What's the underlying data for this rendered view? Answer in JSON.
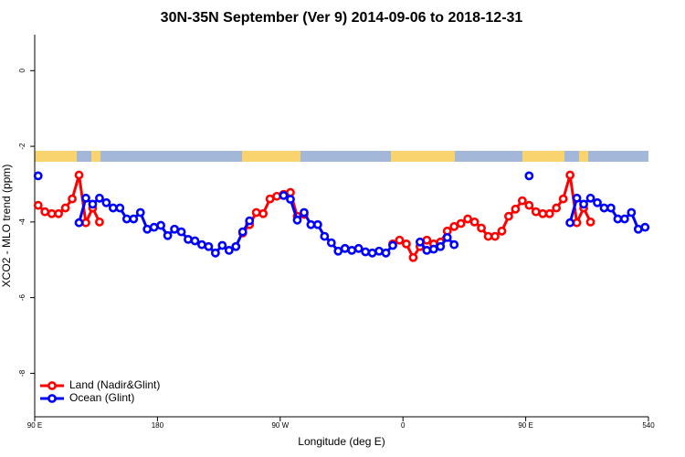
{
  "chart_data": {
    "type": "line",
    "title": "30N-35N September (Ver 9)   2014-09-06 to 2018-12-31",
    "x_label": "Longitude (deg E)",
    "y_label": "XCO2 - MLO trend (ppm)",
    "x": [
      92.5,
      97.5,
      102.5,
      107.5,
      112.5,
      117.5,
      122.5,
      127.5,
      132.5,
      137.5,
      142.5,
      147.5,
      152.5,
      157.5,
      162.5,
      167.5,
      172.5,
      177.5,
      182.5,
      187.5,
      192.5,
      197.5,
      202.5,
      207.5,
      212.5,
      217.5,
      222.5,
      227.5,
      232.5,
      237.5,
      242.5,
      247.5,
      252.5,
      257.5,
      262.5,
      267.5,
      272.5,
      277.5,
      282.5,
      287.5,
      292.5,
      297.5,
      302.5,
      307.5,
      312.5,
      317.5,
      322.5,
      327.5,
      332.5,
      337.5,
      342.5,
      347.5,
      352.5,
      357.5,
      362.5,
      367.5,
      372.5,
      377.5,
      382.5,
      387.5,
      392.5,
      397.5,
      402.5,
      407.5,
      412.5,
      417.5,
      422.5,
      427.5,
      432.5,
      437.5,
      442.5,
      447.5,
      452.5,
      457.5,
      462.5,
      467.5,
      472.5,
      477.5,
      482.5,
      487.5,
      492.5,
      497.5,
      502.5,
      507.5,
      512.5,
      517.5,
      522.5,
      527.5,
      532.5,
      537.5
    ],
    "series": [
      {
        "name": "Land (Nadir&Glint)",
        "color": "#ff0000",
        "values": [
          -3.56,
          -3.73,
          -3.78,
          -3.78,
          -3.63,
          -3.39,
          -2.76,
          -4.02,
          -3.63,
          -4.0,
          null,
          null,
          null,
          null,
          null,
          null,
          null,
          null,
          null,
          null,
          null,
          null,
          null,
          null,
          null,
          null,
          null,
          null,
          null,
          null,
          -4.29,
          -4.07,
          -3.75,
          -3.78,
          -3.39,
          -3.32,
          -3.27,
          -3.22,
          -3.85,
          -3.8,
          null,
          null,
          null,
          null,
          null,
          null,
          null,
          null,
          null,
          null,
          null,
          null,
          -4.58,
          -4.48,
          -4.58,
          -4.94,
          -4.65,
          -4.48,
          -4.58,
          -4.53,
          -4.24,
          -4.12,
          -4.04,
          -3.92,
          -4.0,
          -4.16,
          -4.38,
          -4.38,
          -4.24,
          -3.85,
          -3.66,
          -3.44,
          -3.56,
          -3.73,
          -3.78,
          -3.78,
          -3.63,
          -3.39,
          -2.76,
          -4.02,
          -3.63,
          -4.0,
          null,
          null,
          null,
          null,
          null,
          null,
          null,
          null
        ]
      },
      {
        "name": "Ocean (Glint)",
        "color": "#0000ff",
        "values": [
          -2.78,
          null,
          null,
          null,
          null,
          null,
          -4.02,
          -3.37,
          -3.53,
          -3.37,
          -3.49,
          -3.63,
          -3.63,
          -3.92,
          -3.92,
          -3.75,
          -4.19,
          -4.14,
          -4.09,
          -4.36,
          -4.19,
          -4.26,
          -4.46,
          -4.5,
          -4.6,
          -4.65,
          -4.82,
          -4.62,
          -4.75,
          -4.65,
          -4.26,
          -3.97,
          null,
          null,
          null,
          null,
          -3.3,
          -3.4,
          -3.95,
          -3.75,
          -4.07,
          -4.07,
          -4.38,
          -4.55,
          -4.77,
          -4.7,
          -4.75,
          -4.7,
          -4.79,
          -4.82,
          -4.77,
          -4.82,
          -4.62,
          null,
          null,
          null,
          -4.53,
          -4.75,
          -4.72,
          -4.65,
          -4.41,
          -4.6,
          null,
          null,
          null,
          null,
          null,
          null,
          null,
          null,
          null,
          null,
          -2.78,
          null,
          null,
          null,
          null,
          null,
          -4.02,
          -3.37,
          -3.53,
          -3.37,
          -3.49,
          -3.63,
          -3.63,
          -3.92,
          -3.92,
          -3.75,
          -4.19,
          -4.14
        ]
      }
    ],
    "xlim": [
      90,
      540
    ],
    "xticks": [
      {
        "value": 90,
        "label": "90 E"
      },
      180,
      {
        "value": 270,
        "label": "90 W"
      },
      {
        "value": 360,
        "label": "0"
      },
      {
        "value": 450,
        "label": "90 E"
      },
      540
    ],
    "ylim": [
      -9.15,
      0.95
    ],
    "yticks": [
      0,
      -2,
      -4,
      -6,
      -8
    ],
    "legend": "bottom-left",
    "grid": false
  }
}
